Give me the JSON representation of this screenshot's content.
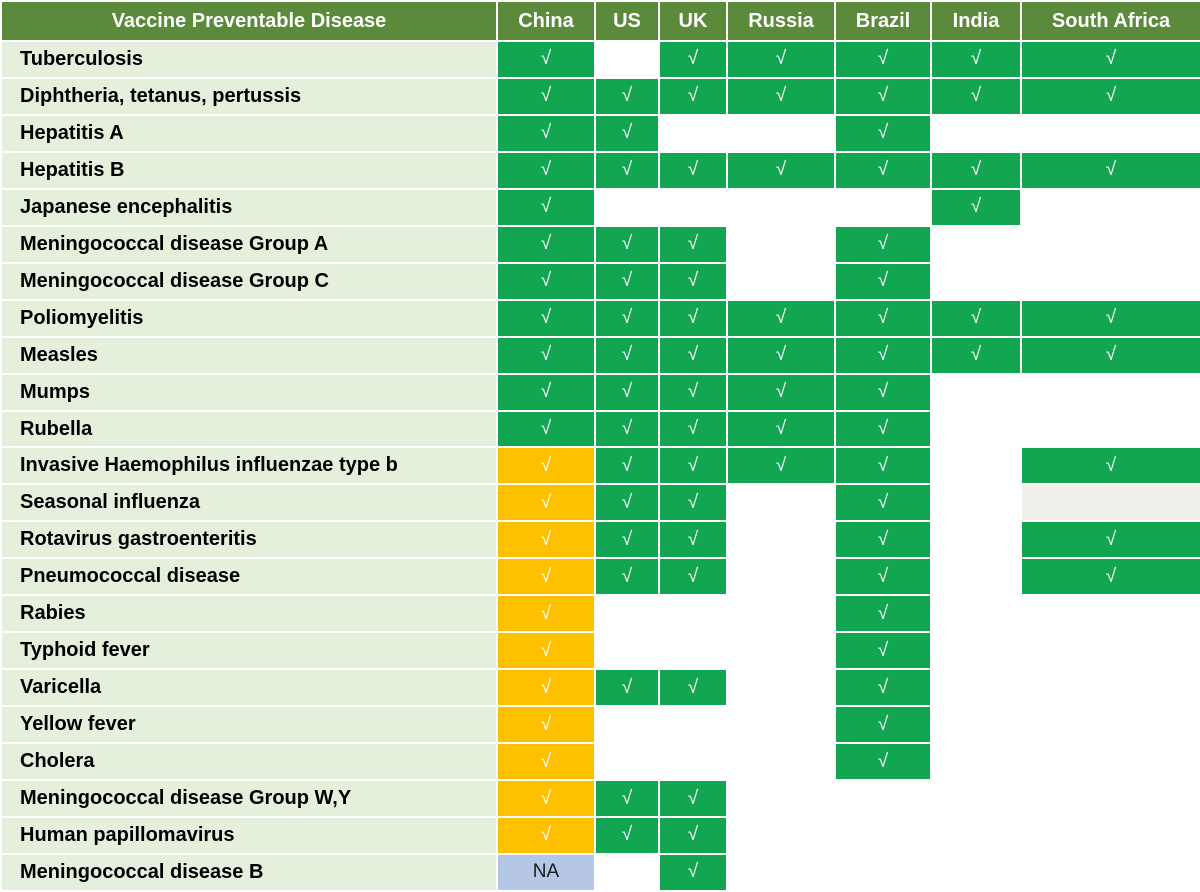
{
  "header": {
    "disease_col": "Vaccine Preventable Disease",
    "countries": [
      "China",
      "US",
      "UK",
      "Russia",
      "Brazil",
      "India",
      "South Africa"
    ]
  },
  "colors": {
    "header_bg": "#5b8a3a",
    "disease_bg": "#e4efdc",
    "check_green": "#12a650",
    "china_orange": "#ffc000",
    "na_blue": "#b4c7e7",
    "light_gray": "#f0f0ea",
    "empty": "#ffffff"
  },
  "legend": {
    "G": "check-green",
    "O": "check-orange",
    "N": "not-available",
    "L": "light-gray-empty",
    "E": "empty"
  },
  "rows": [
    {
      "disease": "Tuberculosis",
      "cells": [
        {
          "t": "G",
          "v": "√"
        },
        {
          "t": "E",
          "v": ""
        },
        {
          "t": "G",
          "v": "√"
        },
        {
          "t": "G",
          "v": "√"
        },
        {
          "t": "G",
          "v": "√"
        },
        {
          "t": "G",
          "v": "√"
        },
        {
          "t": "G",
          "v": "√"
        }
      ]
    },
    {
      "disease": "Diphtheria, tetanus, pertussis",
      "cells": [
        {
          "t": "G",
          "v": "√"
        },
        {
          "t": "G",
          "v": "√"
        },
        {
          "t": "G",
          "v": "√"
        },
        {
          "t": "G",
          "v": "√"
        },
        {
          "t": "G",
          "v": "√"
        },
        {
          "t": "G",
          "v": "√"
        },
        {
          "t": "G",
          "v": "√"
        }
      ]
    },
    {
      "disease": "Hepatitis A",
      "cells": [
        {
          "t": "G",
          "v": "√"
        },
        {
          "t": "G",
          "v": "√"
        },
        {
          "t": "E",
          "v": ""
        },
        {
          "t": "E",
          "v": ""
        },
        {
          "t": "G",
          "v": "√"
        },
        {
          "t": "E",
          "v": ""
        },
        {
          "t": "E",
          "v": ""
        }
      ]
    },
    {
      "disease": "Hepatitis B",
      "cells": [
        {
          "t": "G",
          "v": "√"
        },
        {
          "t": "G",
          "v": "√"
        },
        {
          "t": "G",
          "v": "√"
        },
        {
          "t": "G",
          "v": "√"
        },
        {
          "t": "G",
          "v": "√"
        },
        {
          "t": "G",
          "v": "√"
        },
        {
          "t": "G",
          "v": "√"
        }
      ]
    },
    {
      "disease": "Japanese encephalitis",
      "cells": [
        {
          "t": "G",
          "v": "√"
        },
        {
          "t": "E",
          "v": ""
        },
        {
          "t": "E",
          "v": ""
        },
        {
          "t": "E",
          "v": ""
        },
        {
          "t": "E",
          "v": ""
        },
        {
          "t": "G",
          "v": "√"
        },
        {
          "t": "E",
          "v": ""
        }
      ]
    },
    {
      "disease": "Meningococcal disease Group A",
      "cells": [
        {
          "t": "G",
          "v": "√"
        },
        {
          "t": "G",
          "v": "√"
        },
        {
          "t": "G",
          "v": "√"
        },
        {
          "t": "E",
          "v": ""
        },
        {
          "t": "G",
          "v": "√"
        },
        {
          "t": "E",
          "v": ""
        },
        {
          "t": "E",
          "v": ""
        }
      ]
    },
    {
      "disease": "Meningococcal disease Group C",
      "cells": [
        {
          "t": "G",
          "v": "√"
        },
        {
          "t": "G",
          "v": "√"
        },
        {
          "t": "G",
          "v": "√"
        },
        {
          "t": "E",
          "v": ""
        },
        {
          "t": "G",
          "v": "√"
        },
        {
          "t": "E",
          "v": ""
        },
        {
          "t": "E",
          "v": ""
        }
      ]
    },
    {
      "disease": "Poliomyelitis",
      "cells": [
        {
          "t": "G",
          "v": "√"
        },
        {
          "t": "G",
          "v": "√"
        },
        {
          "t": "G",
          "v": "√"
        },
        {
          "t": "G",
          "v": "√"
        },
        {
          "t": "G",
          "v": "√"
        },
        {
          "t": "G",
          "v": "√"
        },
        {
          "t": "G",
          "v": "√"
        }
      ]
    },
    {
      "disease": "Measles",
      "cells": [
        {
          "t": "G",
          "v": "√"
        },
        {
          "t": "G",
          "v": "√"
        },
        {
          "t": "G",
          "v": "√"
        },
        {
          "t": "G",
          "v": "√"
        },
        {
          "t": "G",
          "v": "√"
        },
        {
          "t": "G",
          "v": "√"
        },
        {
          "t": "G",
          "v": "√"
        }
      ]
    },
    {
      "disease": "Mumps",
      "cells": [
        {
          "t": "G",
          "v": "√"
        },
        {
          "t": "G",
          "v": "√"
        },
        {
          "t": "G",
          "v": "√"
        },
        {
          "t": "G",
          "v": "√"
        },
        {
          "t": "G",
          "v": "√"
        },
        {
          "t": "E",
          "v": ""
        },
        {
          "t": "E",
          "v": ""
        }
      ]
    },
    {
      "disease": "Rubella",
      "cells": [
        {
          "t": "G",
          "v": "√"
        },
        {
          "t": "G",
          "v": "√"
        },
        {
          "t": "G",
          "v": "√"
        },
        {
          "t": "G",
          "v": "√"
        },
        {
          "t": "G",
          "v": "√"
        },
        {
          "t": "E",
          "v": ""
        },
        {
          "t": "E",
          "v": ""
        }
      ]
    },
    {
      "disease": "Invasive Haemophilus influenzae type b",
      "cells": [
        {
          "t": "O",
          "v": "√"
        },
        {
          "t": "G",
          "v": "√"
        },
        {
          "t": "G",
          "v": "√"
        },
        {
          "t": "G",
          "v": "√"
        },
        {
          "t": "G",
          "v": "√"
        },
        {
          "t": "E",
          "v": ""
        },
        {
          "t": "G",
          "v": "√"
        }
      ]
    },
    {
      "disease": "Seasonal influenza",
      "cells": [
        {
          "t": "O",
          "v": "√"
        },
        {
          "t": "G",
          "v": "√"
        },
        {
          "t": "G",
          "v": "√"
        },
        {
          "t": "E",
          "v": ""
        },
        {
          "t": "G",
          "v": "√"
        },
        {
          "t": "E",
          "v": ""
        },
        {
          "t": "L",
          "v": ""
        }
      ]
    },
    {
      "disease": "Rotavirus gastroenteritis",
      "cells": [
        {
          "t": "O",
          "v": "√"
        },
        {
          "t": "G",
          "v": "√"
        },
        {
          "t": "G",
          "v": "√"
        },
        {
          "t": "E",
          "v": ""
        },
        {
          "t": "G",
          "v": "√"
        },
        {
          "t": "E",
          "v": ""
        },
        {
          "t": "G",
          "v": "√"
        }
      ]
    },
    {
      "disease": "Pneumococcal disease",
      "cells": [
        {
          "t": "O",
          "v": "√"
        },
        {
          "t": "G",
          "v": "√"
        },
        {
          "t": "G",
          "v": "√"
        },
        {
          "t": "E",
          "v": ""
        },
        {
          "t": "G",
          "v": "√"
        },
        {
          "t": "E",
          "v": ""
        },
        {
          "t": "G",
          "v": "√"
        }
      ]
    },
    {
      "disease": "Rabies",
      "cells": [
        {
          "t": "O",
          "v": "√"
        },
        {
          "t": "E",
          "v": ""
        },
        {
          "t": "E",
          "v": ""
        },
        {
          "t": "E",
          "v": ""
        },
        {
          "t": "G",
          "v": "√"
        },
        {
          "t": "E",
          "v": ""
        },
        {
          "t": "E",
          "v": ""
        }
      ]
    },
    {
      "disease": "Typhoid fever",
      "cells": [
        {
          "t": "O",
          "v": "√"
        },
        {
          "t": "E",
          "v": ""
        },
        {
          "t": "E",
          "v": ""
        },
        {
          "t": "E",
          "v": ""
        },
        {
          "t": "G",
          "v": "√"
        },
        {
          "t": "E",
          "v": ""
        },
        {
          "t": "E",
          "v": ""
        }
      ]
    },
    {
      "disease": "Varicella",
      "cells": [
        {
          "t": "O",
          "v": "√"
        },
        {
          "t": "G",
          "v": "√"
        },
        {
          "t": "G",
          "v": "√"
        },
        {
          "t": "E",
          "v": ""
        },
        {
          "t": "G",
          "v": "√"
        },
        {
          "t": "E",
          "v": ""
        },
        {
          "t": "E",
          "v": ""
        }
      ]
    },
    {
      "disease": "Yellow fever",
      "cells": [
        {
          "t": "O",
          "v": "√"
        },
        {
          "t": "E",
          "v": ""
        },
        {
          "t": "E",
          "v": ""
        },
        {
          "t": "E",
          "v": ""
        },
        {
          "t": "G",
          "v": "√"
        },
        {
          "t": "E",
          "v": ""
        },
        {
          "t": "E",
          "v": ""
        }
      ]
    },
    {
      "disease": "Cholera",
      "cells": [
        {
          "t": "O",
          "v": "√"
        },
        {
          "t": "E",
          "v": ""
        },
        {
          "t": "E",
          "v": ""
        },
        {
          "t": "E",
          "v": ""
        },
        {
          "t": "G",
          "v": "√"
        },
        {
          "t": "E",
          "v": ""
        },
        {
          "t": "E",
          "v": ""
        }
      ]
    },
    {
      "disease": "Meningococcal disease Group W,Y",
      "cells": [
        {
          "t": "O",
          "v": "√"
        },
        {
          "t": "G",
          "v": "√"
        },
        {
          "t": "G",
          "v": "√"
        },
        {
          "t": "E",
          "v": ""
        },
        {
          "t": "E",
          "v": ""
        },
        {
          "t": "E",
          "v": ""
        },
        {
          "t": "E",
          "v": ""
        }
      ]
    },
    {
      "disease": "Human papillomavirus",
      "cells": [
        {
          "t": "O",
          "v": "√"
        },
        {
          "t": "G",
          "v": "√"
        },
        {
          "t": "G",
          "v": "√"
        },
        {
          "t": "E",
          "v": ""
        },
        {
          "t": "E",
          "v": ""
        },
        {
          "t": "E",
          "v": ""
        },
        {
          "t": "E",
          "v": ""
        }
      ]
    },
    {
      "disease": "Meningococcal disease B",
      "cells": [
        {
          "t": "N",
          "v": "NA"
        },
        {
          "t": "E",
          "v": ""
        },
        {
          "t": "G",
          "v": "√"
        },
        {
          "t": "E",
          "v": ""
        },
        {
          "t": "E",
          "v": ""
        },
        {
          "t": "E",
          "v": ""
        },
        {
          "t": "E",
          "v": ""
        }
      ]
    }
  ]
}
